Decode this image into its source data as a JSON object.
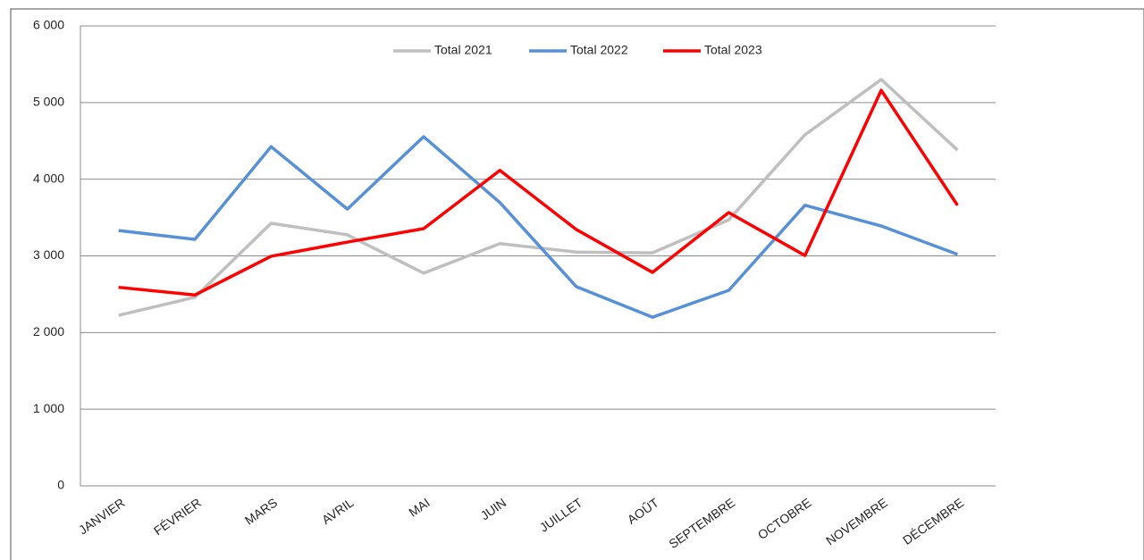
{
  "chart_data": {
    "type": "line",
    "categories": [
      "JANVIER",
      "FÉVRIER",
      "MARS",
      "AVRIL",
      "MAI",
      "JUIN",
      "JUILLET",
      "AOÛT",
      "SEPTEMBRE",
      "OCTOBRE",
      "NOVEMBRE",
      "DÉCEMBRE"
    ],
    "series": [
      {
        "name": "Total 2021",
        "color": "#bfbfbf",
        "values": [
          2225,
          2460,
          3425,
          3275,
          2775,
          3160,
          3050,
          3040,
          3470,
          4580,
          5300,
          4380
        ]
      },
      {
        "name": "Total 2022",
        "color": "#5590d8",
        "values": [
          3330,
          3215,
          4425,
          3610,
          4555,
          3695,
          2600,
          2200,
          2550,
          3660,
          3390,
          3020
        ]
      },
      {
        "name": "Total 2023",
        "color": "#ff0000",
        "values": [
          2590,
          2490,
          2995,
          3180,
          3355,
          4115,
          3345,
          2785,
          3565,
          3005,
          5160,
          3660
        ]
      }
    ],
    "ylim": [
      0,
      6000
    ],
    "yticks": [
      0,
      {
        "value": 1000,
        "label": "1 000"
      },
      {
        "value": 2000,
        "label": "2 000"
      },
      {
        "value": 3000,
        "label": "3 000"
      },
      {
        "value": 4000,
        "label": "4 000"
      },
      {
        "value": 5000,
        "label": "5 000"
      },
      {
        "value": 6000,
        "label": "6 000"
      }
    ],
    "grid": true,
    "legend": "top"
  }
}
